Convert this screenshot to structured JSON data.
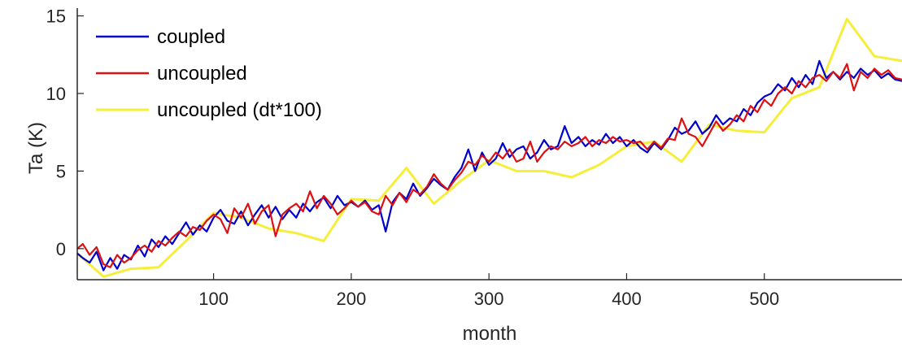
{
  "chart_data": {
    "type": "line",
    "title": "",
    "xlabel": "month",
    "ylabel": "Ta (K)",
    "xlim": [
      1,
      600
    ],
    "ylim": [
      -2,
      15.5
    ],
    "xticks": [
      100,
      200,
      300,
      400,
      500
    ],
    "yticks": [
      0,
      5,
      10,
      15
    ],
    "grid": false,
    "legend_position": "top-left",
    "series": [
      {
        "name": "coupled",
        "color": "#0000cc",
        "x": [
          1,
          5,
          10,
          15,
          20,
          25,
          30,
          35,
          40,
          45,
          50,
          55,
          60,
          65,
          70,
          75,
          80,
          85,
          90,
          95,
          100,
          105,
          110,
          115,
          120,
          125,
          130,
          135,
          140,
          145,
          150,
          155,
          160,
          165,
          170,
          175,
          180,
          185,
          190,
          195,
          200,
          205,
          210,
          215,
          220,
          225,
          230,
          235,
          240,
          245,
          250,
          255,
          260,
          265,
          270,
          275,
          280,
          285,
          290,
          295,
          300,
          305,
          310,
          315,
          320,
          325,
          330,
          335,
          340,
          345,
          350,
          355,
          360,
          365,
          370,
          375,
          380,
          385,
          390,
          395,
          400,
          405,
          410,
          415,
          420,
          425,
          430,
          435,
          440,
          445,
          450,
          455,
          460,
          465,
          470,
          475,
          480,
          485,
          490,
          495,
          500,
          505,
          510,
          515,
          520,
          525,
          530,
          535,
          540,
          545,
          550,
          555,
          560,
          565,
          570,
          575,
          580,
          585,
          590,
          595,
          600
        ],
        "y": [
          -0.3,
          -0.6,
          -0.9,
          -0.2,
          -1.4,
          -0.6,
          -1.3,
          -0.4,
          -0.7,
          0.2,
          -0.5,
          0.6,
          0.1,
          0.8,
          0.3,
          1.0,
          1.7,
          0.9,
          1.5,
          1.1,
          2.0,
          2.5,
          1.8,
          1.6,
          2.4,
          1.5,
          2.2,
          2.8,
          2.0,
          2.7,
          1.9,
          2.5,
          2.0,
          2.9,
          2.4,
          3.0,
          3.3,
          2.6,
          3.4,
          2.8,
          3.0,
          2.7,
          3.1,
          2.5,
          2.8,
          1.1,
          3.0,
          3.6,
          3.2,
          4.2,
          3.4,
          3.9,
          4.5,
          4.1,
          3.8,
          4.6,
          5.2,
          6.4,
          5.0,
          6.2,
          5.4,
          5.8,
          6.8,
          5.9,
          6.4,
          6.6,
          5.8,
          6.2,
          7.0,
          6.4,
          6.6,
          7.9,
          6.8,
          7.2,
          6.6,
          7.0,
          6.7,
          7.4,
          6.8,
          7.2,
          6.6,
          7.0,
          6.5,
          6.2,
          6.8,
          6.4,
          7.0,
          7.8,
          7.4,
          7.6,
          8.2,
          7.4,
          7.8,
          8.6,
          8.0,
          8.4,
          8.2,
          9.0,
          8.6,
          9.4,
          9.8,
          10.0,
          10.6,
          10.2,
          11.0,
          10.4,
          11.2,
          10.6,
          12.1,
          11.0,
          11.4,
          10.9,
          11.4,
          11.0,
          11.6,
          11.2,
          11.5,
          11.0,
          11.3,
          10.9,
          10.8
        ]
      },
      {
        "name": "uncoupled",
        "color": "#dd1111",
        "x": [
          1,
          5,
          10,
          15,
          20,
          25,
          30,
          35,
          40,
          45,
          50,
          55,
          60,
          65,
          70,
          75,
          80,
          85,
          90,
          95,
          100,
          105,
          110,
          115,
          120,
          125,
          130,
          135,
          140,
          145,
          150,
          155,
          160,
          165,
          170,
          175,
          180,
          185,
          190,
          195,
          200,
          205,
          210,
          215,
          220,
          225,
          230,
          235,
          240,
          245,
          250,
          255,
          260,
          265,
          270,
          275,
          280,
          285,
          290,
          295,
          300,
          305,
          310,
          315,
          320,
          325,
          330,
          335,
          340,
          345,
          350,
          355,
          360,
          365,
          370,
          375,
          380,
          385,
          390,
          395,
          400,
          405,
          410,
          415,
          420,
          425,
          430,
          435,
          440,
          445,
          450,
          455,
          460,
          465,
          470,
          475,
          480,
          485,
          490,
          495,
          500,
          505,
          510,
          515,
          520,
          525,
          530,
          535,
          540,
          545,
          550,
          555,
          560,
          565,
          570,
          575,
          580,
          585,
          590,
          595,
          600
        ],
        "y": [
          0.0,
          0.3,
          -0.4,
          0.1,
          -1.0,
          -1.2,
          -0.4,
          -0.9,
          -0.6,
          -0.1,
          0.2,
          -0.2,
          0.5,
          0.2,
          0.7,
          1.1,
          0.8,
          1.4,
          1.2,
          1.8,
          2.2,
          1.9,
          1.0,
          2.6,
          2.0,
          2.9,
          1.6,
          2.4,
          2.8,
          0.8,
          2.2,
          2.6,
          2.9,
          2.4,
          3.7,
          2.6,
          3.4,
          2.9,
          2.2,
          2.6,
          3.1,
          2.7,
          3.0,
          2.4,
          2.2,
          3.4,
          2.8,
          3.6,
          3.0,
          3.8,
          3.5,
          4.0,
          4.8,
          4.2,
          3.8,
          4.4,
          4.9,
          5.6,
          5.4,
          6.0,
          5.6,
          6.2,
          5.8,
          6.4,
          5.6,
          5.8,
          6.9,
          5.6,
          6.2,
          6.6,
          6.4,
          6.9,
          6.6,
          6.8,
          7.2,
          6.6,
          7.0,
          6.8,
          7.2,
          6.9,
          7.0,
          6.8,
          6.9,
          6.4,
          6.9,
          6.5,
          7.1,
          7.0,
          8.4,
          7.4,
          7.2,
          6.6,
          7.4,
          8.2,
          7.6,
          8.0,
          8.6,
          8.2,
          9.2,
          8.8,
          9.6,
          9.2,
          10.0,
          10.4,
          10.0,
          10.8,
          10.4,
          11.0,
          11.2,
          10.8,
          11.4,
          11.0,
          11.9,
          10.2,
          11.4,
          11.0,
          11.6,
          11.2,
          11.5,
          11.0,
          10.9
        ]
      },
      {
        "name": "uncoupled (dt*100)",
        "color": "#f5ee3a",
        "x": [
          1,
          20,
          40,
          60,
          80,
          100,
          120,
          140,
          160,
          180,
          200,
          220,
          240,
          260,
          280,
          300,
          320,
          340,
          360,
          380,
          400,
          420,
          440,
          460,
          480,
          500,
          520,
          540,
          560,
          580,
          600
        ],
        "y": [
          -0.3,
          -1.8,
          -1.3,
          -1.2,
          0.5,
          2.3,
          2.0,
          1.3,
          1.0,
          0.5,
          3.2,
          3.1,
          5.2,
          2.9,
          4.4,
          5.7,
          5.0,
          5.0,
          4.6,
          5.4,
          6.6,
          6.9,
          5.6,
          8.0,
          7.6,
          7.5,
          9.7,
          10.4,
          14.8,
          12.4,
          12.1
        ]
      }
    ]
  }
}
